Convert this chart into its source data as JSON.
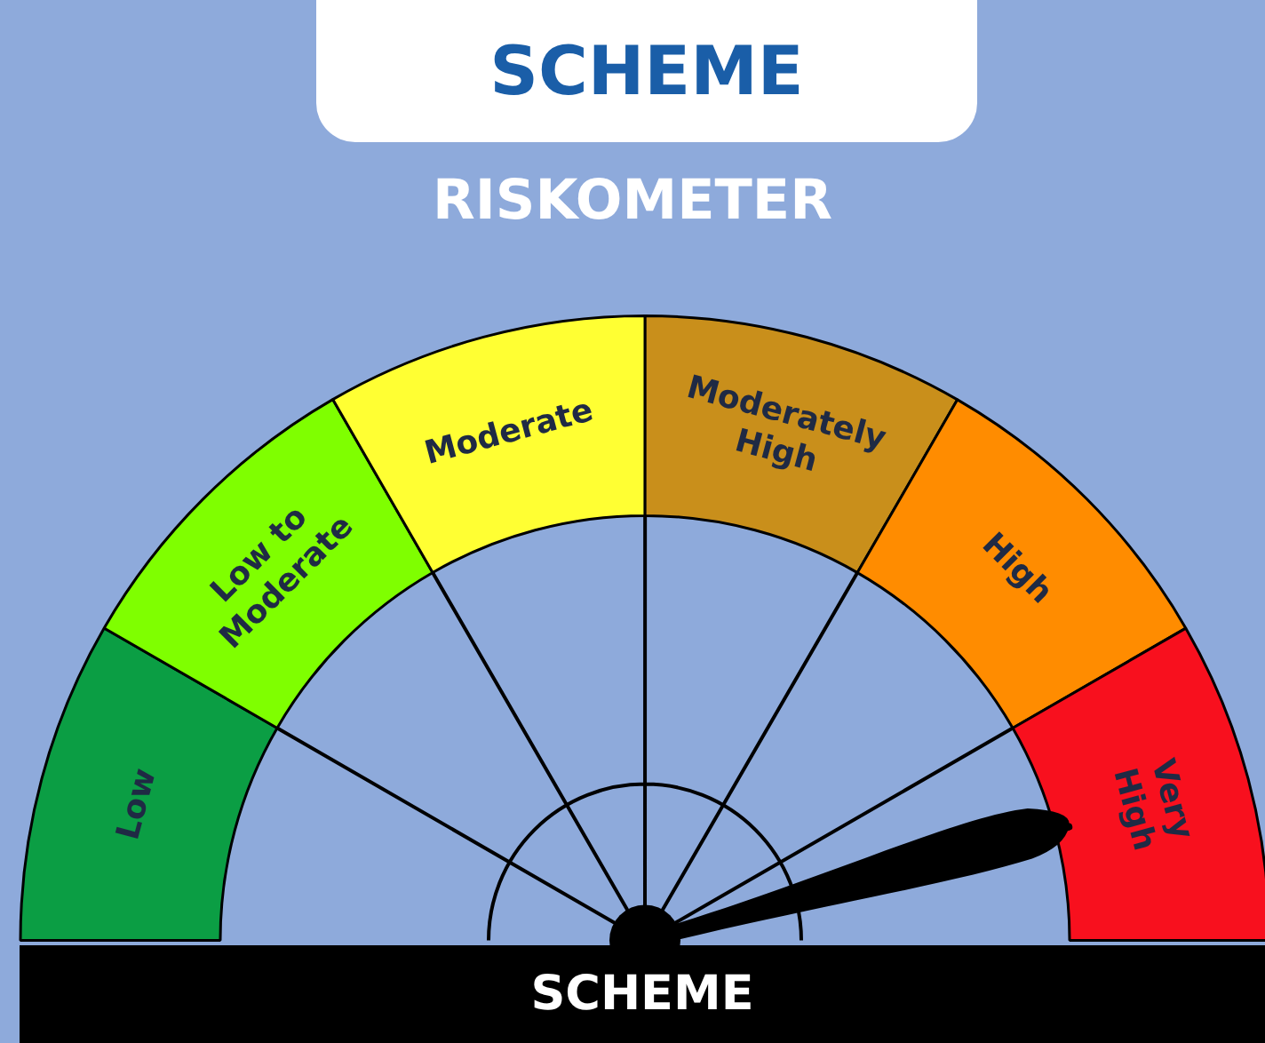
{
  "chart_data": {
    "type": "donut",
    "title": "SCHEME",
    "subtitle": "RISKOMETER",
    "annotations": [
      "SCHEME"
    ],
    "categories": [
      "Low",
      "Low to Moderate",
      "Moderate",
      "Moderately High",
      "High",
      "Very High"
    ],
    "values": [
      16.67,
      16.67,
      16.67,
      16.67,
      16.66,
      16.66
    ],
    "colors": [
      "#0b9e44",
      "#7fff00",
      "#ffff33",
      "#c98f1b",
      "#ff8c00",
      "#f8101e"
    ],
    "needle": "Very High"
  }
}
